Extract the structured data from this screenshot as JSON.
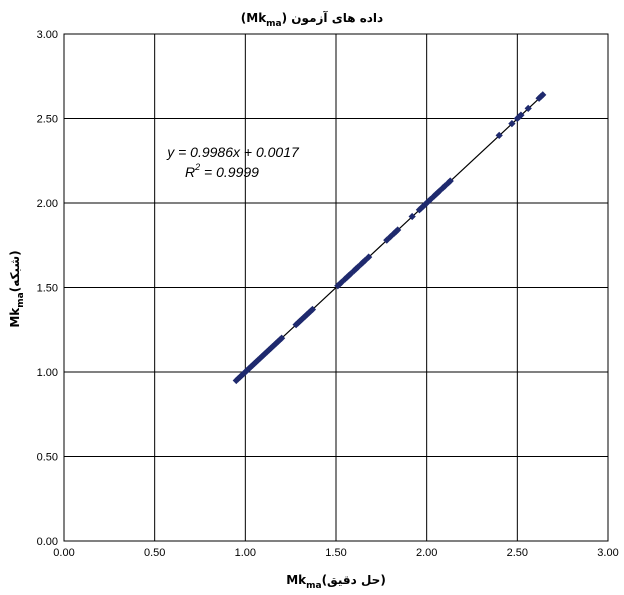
{
  "chart_data": {
    "type": "scatter",
    "title": {
      "main": "(Mk",
      "sub": "ma",
      "tail": ") داده های آزمون"
    },
    "xlabel": {
      "main": "Mk",
      "sub": "ma",
      "tail": "(حل دقیق)"
    },
    "ylabel": {
      "main": "Mk",
      "sub": "ma",
      "tail": "(شبکه)"
    },
    "xlim": [
      0,
      3
    ],
    "ylim": [
      0,
      3
    ],
    "x_ticks": [
      "0.00",
      "0.50",
      "1.00",
      "1.50",
      "2.00",
      "2.50",
      "3.00"
    ],
    "y_ticks": [
      "0.00",
      "0.50",
      "1.00",
      "1.50",
      "2.00",
      "2.50",
      "3.00"
    ],
    "grid": true,
    "legend": "none",
    "trendline": {
      "slope": 0.9986,
      "intercept": 0.0017,
      "x_range": [
        0.95,
        2.65
      ],
      "equation_label": "y = 0.9986x + 0.0017",
      "r2_label_main": "R",
      "r2_label_exp": "2",
      "r2_label_tail": " = 0.9999"
    },
    "marker_color": "#1F2A6E",
    "line_color": "#000000",
    "series": [
      {
        "x": [
          0.95,
          0.96,
          0.97,
          0.98,
          0.99,
          1.0,
          1.01,
          1.02,
          1.03,
          1.04,
          1.05,
          1.06,
          1.07,
          1.08,
          1.09,
          1.1,
          1.11,
          1.12,
          1.13,
          1.14,
          1.15,
          1.16,
          1.17,
          1.18,
          1.19,
          1.2,
          1.28,
          1.29,
          1.3,
          1.31,
          1.32,
          1.33,
          1.34,
          1.35,
          1.36,
          1.37,
          1.51,
          1.52,
          1.53,
          1.55,
          1.56,
          1.57,
          1.58,
          1.6,
          1.61,
          1.62,
          1.64,
          1.65,
          1.66,
          1.68,
          1.78,
          1.8,
          1.82,
          1.83,
          1.84,
          1.92,
          1.96,
          1.97,
          1.98,
          1.99,
          2.0,
          2.01,
          2.02,
          2.04,
          2.05,
          2.06,
          2.07,
          2.09,
          2.1,
          2.12,
          2.13,
          2.4,
          2.47,
          2.5,
          2.51,
          2.52,
          2.56,
          2.62,
          2.63,
          2.64
        ],
        "y": [
          0.95,
          0.96,
          0.97,
          0.98,
          0.99,
          1.0,
          1.01,
          1.02,
          1.03,
          1.04,
          1.05,
          1.06,
          1.07,
          1.08,
          1.09,
          1.1,
          1.11,
          1.12,
          1.13,
          1.14,
          1.15,
          1.16,
          1.17,
          1.18,
          1.19,
          1.2,
          1.28,
          1.29,
          1.3,
          1.31,
          1.32,
          1.33,
          1.34,
          1.35,
          1.36,
          1.37,
          1.51,
          1.52,
          1.53,
          1.55,
          1.56,
          1.57,
          1.58,
          1.6,
          1.61,
          1.62,
          1.64,
          1.65,
          1.66,
          1.68,
          1.78,
          1.8,
          1.82,
          1.83,
          1.84,
          1.92,
          1.96,
          1.97,
          1.98,
          1.99,
          2.0,
          2.01,
          2.02,
          2.04,
          2.05,
          2.06,
          2.07,
          2.09,
          2.1,
          2.12,
          2.13,
          2.4,
          2.47,
          2.5,
          2.51,
          2.52,
          2.56,
          2.62,
          2.63,
          2.64
        ]
      }
    ]
  }
}
